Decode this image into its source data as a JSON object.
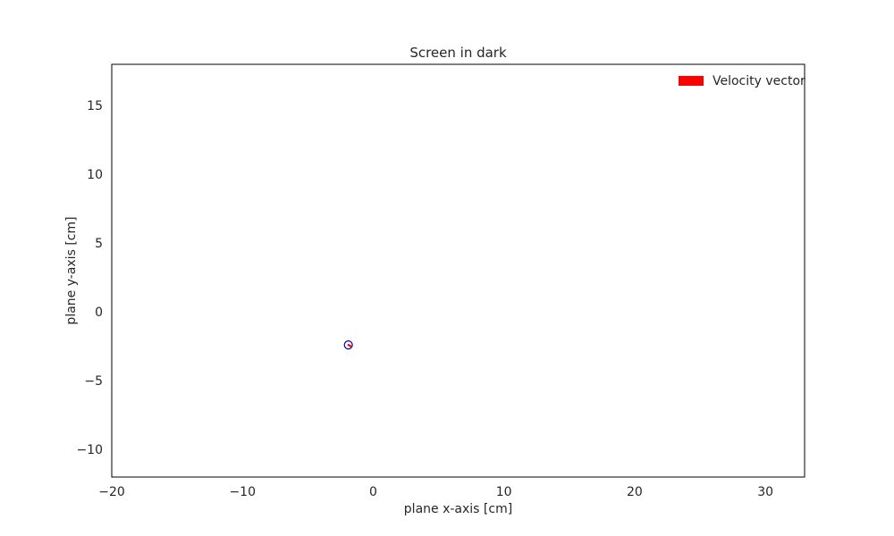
{
  "chart_data": {
    "type": "scatter",
    "title": "Screen in dark",
    "xlabel": "plane x-axis [cm]",
    "ylabel": "plane y-axis [cm]",
    "xlim": [
      -20,
      33
    ],
    "ylim": [
      -12,
      18
    ],
    "xticks": [
      -20,
      -10,
      0,
      10,
      20,
      30
    ],
    "xtick_labels": [
      "−20",
      "−10",
      "0",
      "10",
      "20",
      "30"
    ],
    "yticks": [
      -10,
      -5,
      0,
      5,
      10,
      15
    ],
    "ytick_labels": [
      "−10",
      "−5",
      "0",
      "5",
      "10",
      "15"
    ],
    "grid": false,
    "legend": {
      "placement": "top-right",
      "entries": [
        {
          "label": "Velocity vector",
          "color": "#ff0000"
        }
      ]
    },
    "points": [
      {
        "x": -1.9,
        "y": -2.4
      }
    ],
    "vectors": [
      {
        "x": -1.9,
        "y": -2.4,
        "dx": 0.2,
        "dy": -0.1
      }
    ],
    "colors": {
      "marker_edge": "#0000cc",
      "vector": "#ff0000",
      "axes": "#000000",
      "text": "#262626"
    }
  }
}
